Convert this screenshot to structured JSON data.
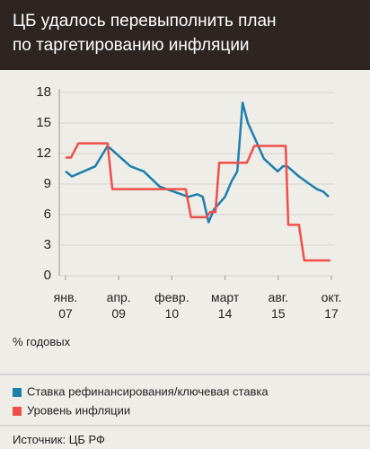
{
  "chart_data": {
    "type": "line",
    "title": "ЦБ удалось перевыполнить план\nпо таргетированию инфляции",
    "ylabel": "% годовых",
    "source": "Источник: ЦБ РФ",
    "xlim": [
      0,
      5
    ],
    "xticks": [
      {
        "value": 0,
        "label": "янв.\n07"
      },
      {
        "value": 1,
        "label": "апр.\n09"
      },
      {
        "value": 2,
        "label": "февр.\n10"
      },
      {
        "value": 3,
        "label": "март\n14"
      },
      {
        "value": 4,
        "label": "авг.\n15"
      },
      {
        "value": 5,
        "label": "окт.\n17"
      }
    ],
    "ylim": [
      0,
      18
    ],
    "yticks": [
      0,
      3,
      6,
      9,
      12,
      15,
      18
    ],
    "grid": true,
    "series": [
      {
        "name": "Ставка рефинансирования/ключевая ставка",
        "color": "#1c7fae",
        "x": [
          0,
          0.12,
          0.56,
          0.79,
          1.22,
          1.47,
          1.77,
          2.31,
          2.48,
          2.58,
          2.69,
          2.79,
          3.0,
          3.12,
          3.23,
          3.33,
          3.43,
          3.56,
          3.73,
          3.99,
          4.09,
          4.17,
          4.39,
          4.59,
          4.73,
          4.85,
          4.95
        ],
        "values": [
          10.25,
          9.75,
          10.75,
          12.75,
          10.75,
          10.25,
          8.75,
          7.75,
          8.0,
          7.75,
          5.25,
          6.5,
          7.75,
          9.25,
          10.25,
          17.0,
          15.0,
          13.5,
          11.5,
          10.25,
          10.75,
          10.75,
          9.75,
          9.0,
          8.5,
          8.25,
          7.75
        ]
      },
      {
        "name": "Уровень инфляции",
        "color": "#f04e48",
        "x": [
          0,
          0.1,
          0.24,
          0.79,
          0.88,
          2.26,
          2.36,
          2.65,
          2.72,
          2.82,
          2.89,
          3.41,
          3.55,
          4.14,
          4.19,
          4.39,
          4.49,
          4.98
        ],
        "values": [
          11.6,
          11.6,
          13.0,
          13.0,
          8.5,
          8.5,
          5.75,
          5.75,
          6.25,
          6.25,
          11.1,
          11.1,
          12.75,
          12.75,
          5.0,
          5.0,
          1.5,
          1.5
        ]
      }
    ]
  }
}
